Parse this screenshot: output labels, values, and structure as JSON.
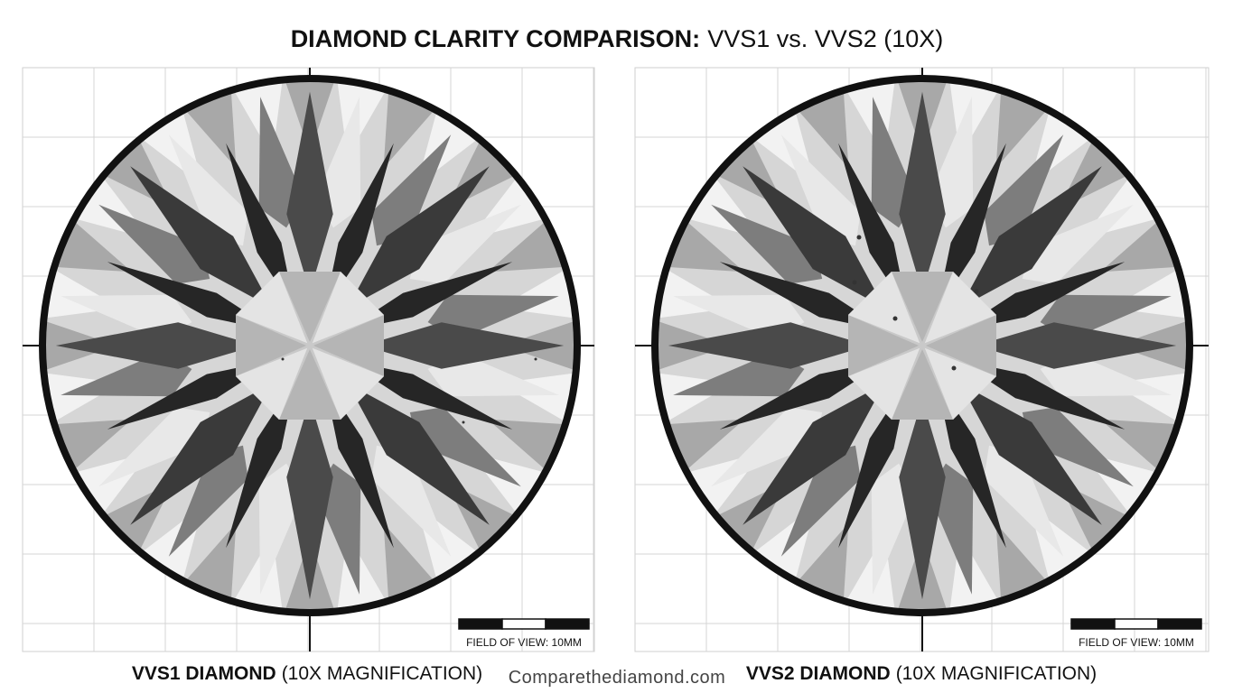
{
  "header": {
    "title_bold": "DIAMOND CLARITY COMPARISON:",
    "title_light": "VVS1 vs. VVS2 (10X)"
  },
  "panels": [
    {
      "label_bold": "VVS1 DIAMOND",
      "label_light": "(10X MAGNIFICATION)",
      "scale_caption": "FIELD OF VIEW: 10MM"
    },
    {
      "label_bold": "VVS2 DIAMOND",
      "label_light": "(10X MAGNIFICATION)",
      "scale_caption": "FIELD OF VIEW: 10MM"
    }
  ],
  "watermark": "Comparethediamond.com"
}
